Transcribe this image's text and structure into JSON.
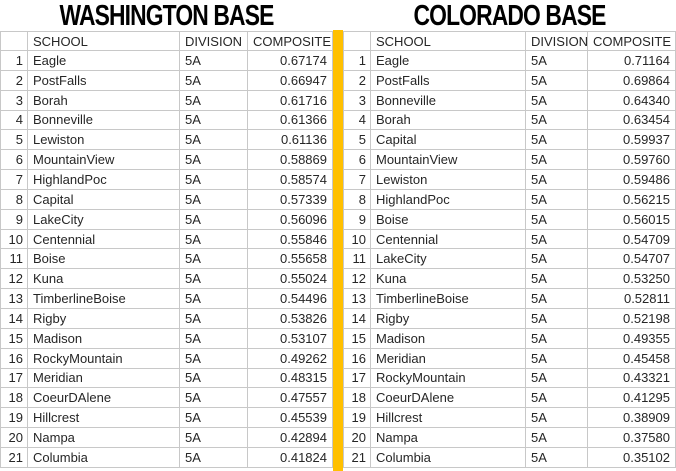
{
  "tables": {
    "washington": {
      "title": "WASHINGTON BASE",
      "columns": [
        "SCHOOL",
        "DIVISION",
        "COMPOSITE"
      ],
      "rows": [
        [
          "1",
          "Eagle",
          "5A",
          "0.67174"
        ],
        [
          "2",
          "PostFalls",
          "5A",
          "0.66947"
        ],
        [
          "3",
          "Borah",
          "5A",
          "0.61716"
        ],
        [
          "4",
          "Bonneville",
          "5A",
          "0.61366"
        ],
        [
          "5",
          "Lewiston",
          "5A",
          "0.61136"
        ],
        [
          "6",
          "MountainView",
          "5A",
          "0.58869"
        ],
        [
          "7",
          "HighlandPoc",
          "5A",
          "0.58574"
        ],
        [
          "8",
          "Capital",
          "5A",
          "0.57339"
        ],
        [
          "9",
          "LakeCity",
          "5A",
          "0.56096"
        ],
        [
          "10",
          "Centennial",
          "5A",
          "0.55846"
        ],
        [
          "11",
          "Boise",
          "5A",
          "0.55658"
        ],
        [
          "12",
          "Kuna",
          "5A",
          "0.55024"
        ],
        [
          "13",
          "TimberlineBoise",
          "5A",
          "0.54496"
        ],
        [
          "14",
          "Rigby",
          "5A",
          "0.53826"
        ],
        [
          "15",
          "Madison",
          "5A",
          "0.53107"
        ],
        [
          "16",
          "RockyMountain",
          "5A",
          "0.49262"
        ],
        [
          "17",
          "Meridian",
          "5A",
          "0.48315"
        ],
        [
          "18",
          "CoeurDAlene",
          "5A",
          "0.47557"
        ],
        [
          "19",
          "Hillcrest",
          "5A",
          "0.45539"
        ],
        [
          "20",
          "Nampa",
          "5A",
          "0.42894"
        ],
        [
          "21",
          "Columbia",
          "5A",
          "0.41824"
        ]
      ]
    },
    "colorado": {
      "title": "COLORADO BASE",
      "columns": [
        "SCHOOL",
        "DIVISION",
        "COMPOSITE"
      ],
      "rows": [
        [
          "1",
          "Eagle",
          "5A",
          "0.71164"
        ],
        [
          "2",
          "PostFalls",
          "5A",
          "0.69864"
        ],
        [
          "3",
          "Bonneville",
          "5A",
          "0.64340"
        ],
        [
          "4",
          "Borah",
          "5A",
          "0.63454"
        ],
        [
          "5",
          "Capital",
          "5A",
          "0.59937"
        ],
        [
          "6",
          "MountainView",
          "5A",
          "0.59760"
        ],
        [
          "7",
          "Lewiston",
          "5A",
          "0.59486"
        ],
        [
          "8",
          "HighlandPoc",
          "5A",
          "0.56215"
        ],
        [
          "9",
          "Boise",
          "5A",
          "0.56015"
        ],
        [
          "10",
          "Centennial",
          "5A",
          "0.54709"
        ],
        [
          "11",
          "LakeCity",
          "5A",
          "0.54707"
        ],
        [
          "12",
          "Kuna",
          "5A",
          "0.53250"
        ],
        [
          "13",
          "TimberlineBoise",
          "5A",
          "0.52811"
        ],
        [
          "14",
          "Rigby",
          "5A",
          "0.52198"
        ],
        [
          "15",
          "Madison",
          "5A",
          "0.49355"
        ],
        [
          "16",
          "Meridian",
          "5A",
          "0.45458"
        ],
        [
          "17",
          "RockyMountain",
          "5A",
          "0.43321"
        ],
        [
          "18",
          "CoeurDAlene",
          "5A",
          "0.41295"
        ],
        [
          "19",
          "Hillcrest",
          "5A",
          "0.38909"
        ],
        [
          "20",
          "Nampa",
          "5A",
          "0.37580"
        ],
        [
          "21",
          "Columbia",
          "5A",
          "0.35102"
        ]
      ]
    }
  },
  "colors": {
    "separator_highlight": "#FFC000",
    "gridline": "#C8C8C8",
    "title_text": "#000000",
    "cell_text": "#262626"
  }
}
